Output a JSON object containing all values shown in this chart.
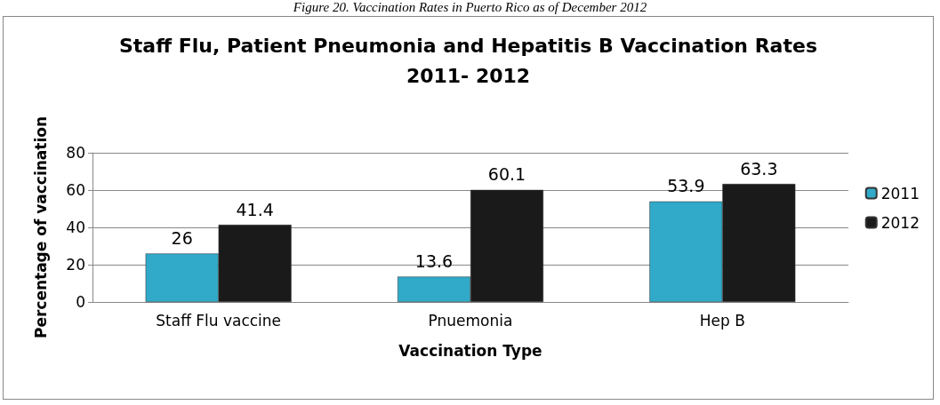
{
  "chart_data": {
    "type": "bar",
    "title": "Staff Flu, Patient Pneumonia and Hepatitis B Vaccination Rates\n2011- 2012",
    "annotations": [
      "Figure 20. Vaccination Rates in Puerto Rico as of December 2012"
    ],
    "xlabel": "Vaccination Type",
    "ylabel": "Percentage of vaccination",
    "categories": [
      "Staff Flu vaccine",
      "Pnuemonia",
      "Hep B"
    ],
    "series": [
      {
        "name": "2011",
        "color": "#31a9c8",
        "values": [
          26,
          13.6,
          53.9
        ]
      },
      {
        "name": "2012",
        "color": "#1a1a1a",
        "values": [
          41.4,
          60.1,
          63.3
        ]
      }
    ],
    "ylim": [
      0,
      80
    ],
    "yticks": [
      0,
      20,
      40,
      60,
      80
    ],
    "grid": "y",
    "legend": "right",
    "data_labels": true
  }
}
